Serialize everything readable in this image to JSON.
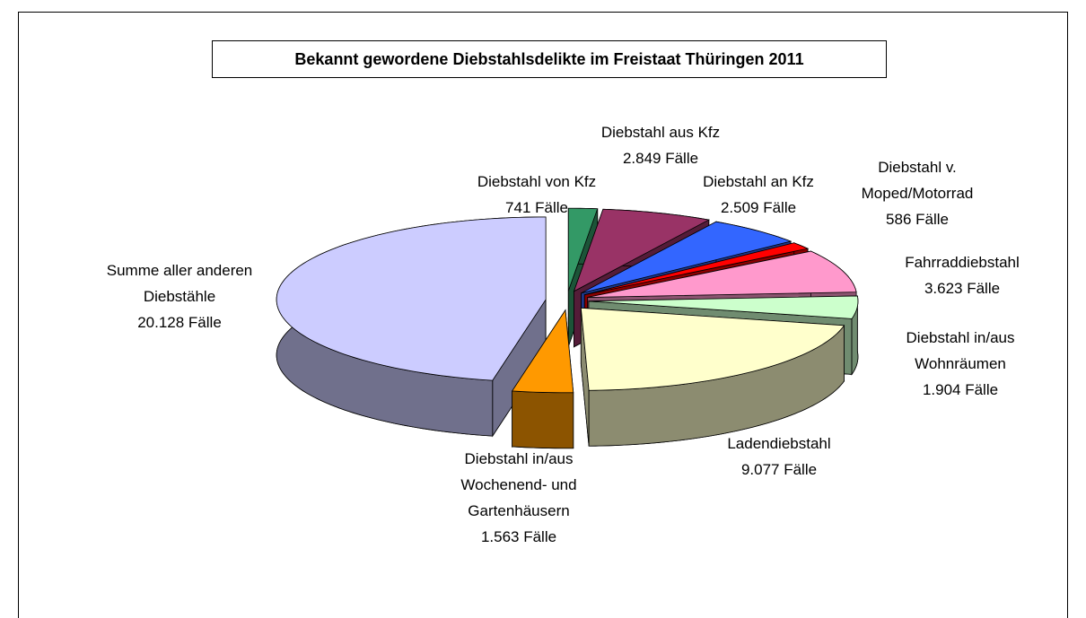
{
  "chart_data": {
    "type": "pie",
    "title": "Bekannt gewordene Diebstahlsdelikte im Freistaat Thüringen 2011",
    "categories": [
      "Diebstahl von Kfz",
      "Diebstahl aus Kfz",
      "Diebstahl an Kfz",
      "Diebstahl v. Moped/Motorrad",
      "Fahrraddiebstahl",
      "Diebstahl in/aus Wohnräumen",
      "Ladendiebstahl",
      "Diebstahl in/aus Wochenend- und Gartenhäusern",
      "Summe aller anderen Diebstähle"
    ],
    "values": [
      741,
      2849,
      2509,
      586,
      3623,
      1904,
      9077,
      1563,
      20128
    ],
    "value_labels": [
      "741 Fälle",
      "2.849 Fälle",
      "2.509 Fälle",
      "586 Fälle",
      "3.623 Fälle",
      "1.904 Fälle",
      "9.077 Fälle",
      "1.563 Fälle",
      "20.128 Fälle"
    ],
    "colors": [
      "#339966",
      "#993366",
      "#3366ff",
      "#ff0000",
      "#ff99cc",
      "#ccffcc",
      "#ffffcc",
      "#ff9900",
      "#ccccff"
    ]
  }
}
